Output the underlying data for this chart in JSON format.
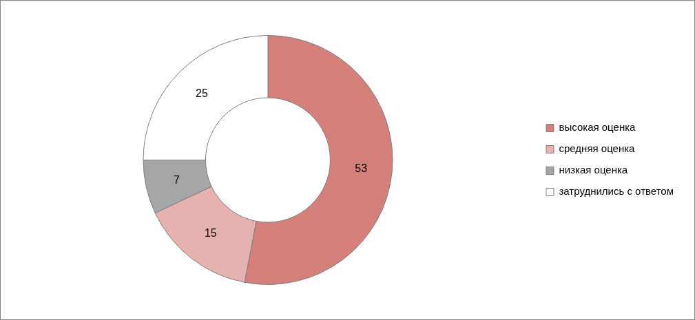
{
  "chart_data": {
    "type": "donut",
    "categories": [
      "высокая оценка",
      "средняя оценка",
      "низкая оценка",
      "затруднились с ответом"
    ],
    "values": [
      53,
      15,
      7,
      25
    ],
    "colors": [
      "#d47f7a",
      "#e6b2b0",
      "#a6a6a6",
      "#ffffff"
    ],
    "data_labels": true,
    "legend": "right"
  }
}
